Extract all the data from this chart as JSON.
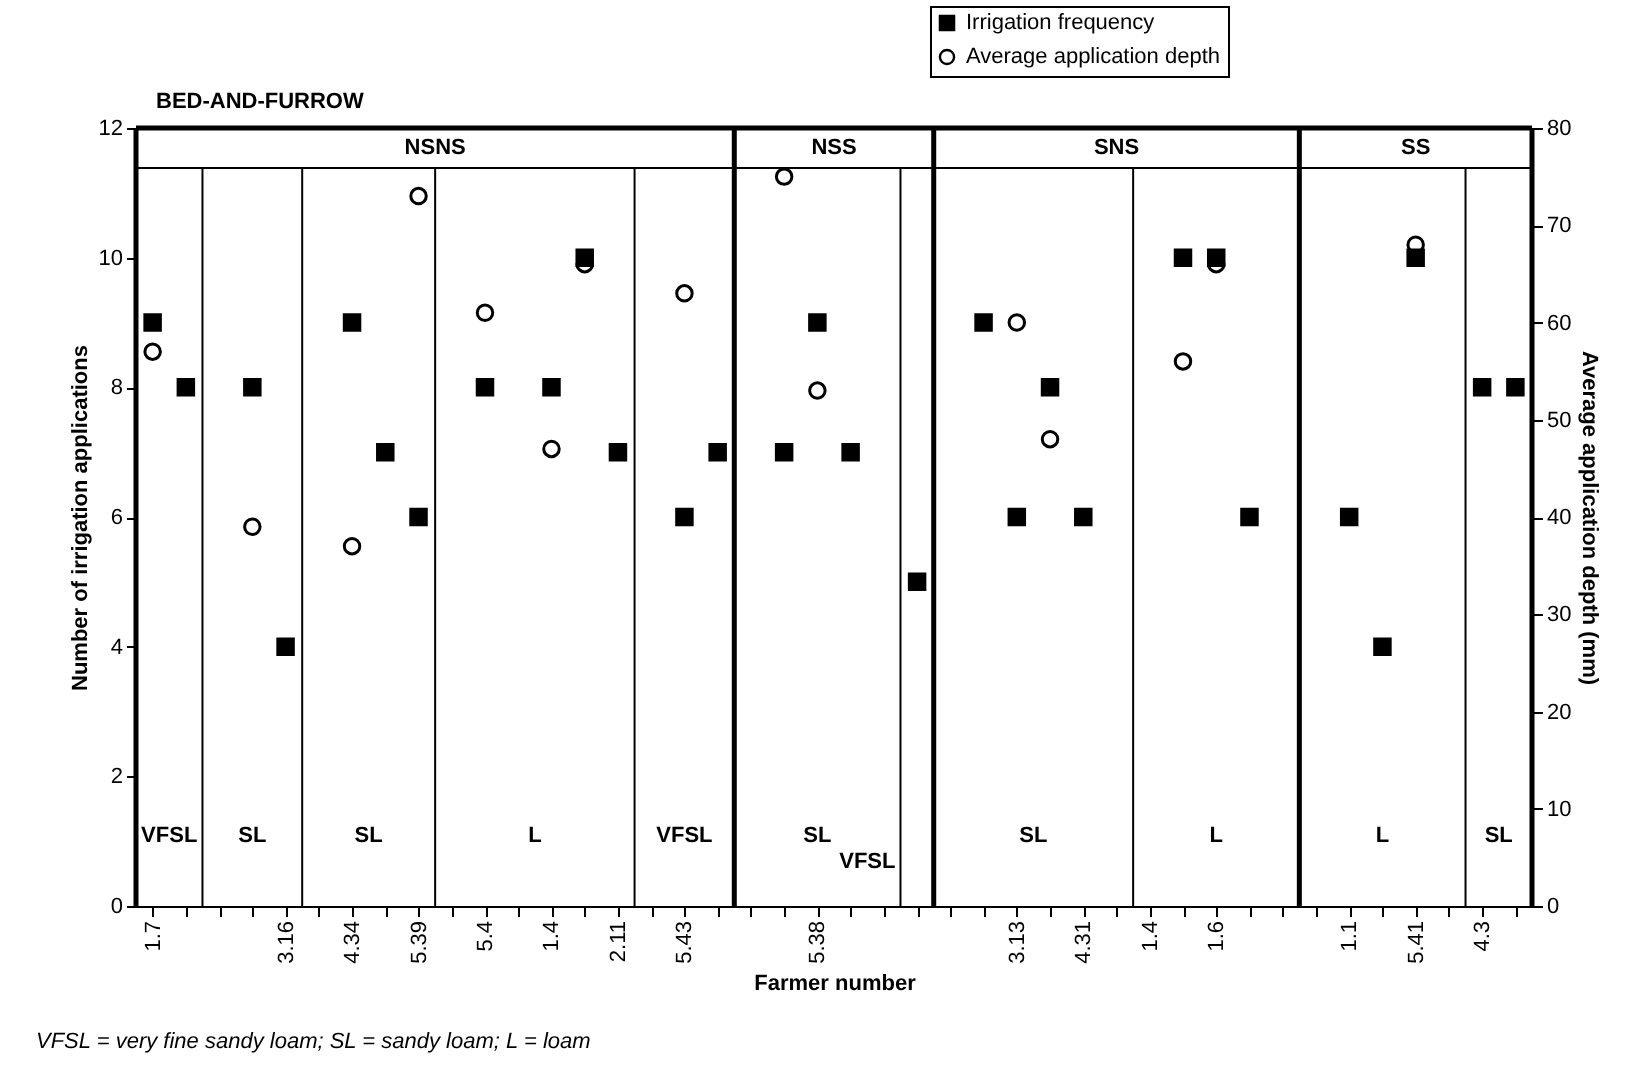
{
  "chart_data": {
    "type": "scatter",
    "title": "BED-AND-FURROW",
    "xlabel": "Farmer number",
    "ylabel": "Number of irrigation applications",
    "y2label": "Average application depth (mm)",
    "annotations": [
      "NSNS",
      "NSS",
      "SNS",
      "SS",
      "VFSL",
      "SL",
      "SL",
      "L",
      "VFSL",
      "SL",
      "VFSL",
      "SL",
      "L",
      "L",
      "SL",
      "VFSL = very fine sandy loam; SL = sandy loam; L = loam"
    ],
    "categories": [
      "1.7",
      null,
      null,
      null,
      "3.16",
      null,
      "4.34",
      null,
      "5.39",
      null,
      "5.4",
      null,
      "1.4",
      null,
      "2.11",
      null,
      "5.43",
      null,
      null,
      null,
      "5.38",
      null,
      null,
      null,
      null,
      null,
      "3.13",
      null,
      "4.31",
      null,
      "1.4",
      null,
      "1.6",
      null,
      null,
      null,
      "1.1",
      null,
      "5.41",
      null,
      "4.3",
      null
    ],
    "series": [
      {
        "name": "Irrigation frequency",
        "color": "#000000",
        "marker": "square",
        "values": [
          9,
          8,
          null,
          8,
          4,
          null,
          9,
          7,
          6,
          null,
          8,
          null,
          8,
          10,
          7,
          null,
          6,
          7,
          null,
          7,
          9,
          7,
          null,
          5,
          null,
          9,
          6,
          8,
          6,
          null,
          null,
          10,
          10,
          6,
          null,
          null,
          6,
          4,
          10,
          null,
          8,
          8
        ]
      },
      {
        "name": "Average application depth",
        "color": "#000000",
        "marker": "circle",
        "axis": "y2",
        "values": [
          57,
          null,
          null,
          39,
          null,
          null,
          37,
          null,
          73,
          null,
          61,
          null,
          47,
          66,
          null,
          null,
          63,
          null,
          null,
          75,
          53,
          null,
          null,
          null,
          null,
          null,
          60,
          48,
          null,
          null,
          null,
          56,
          66,
          null,
          null,
          null,
          null,
          null,
          68,
          null,
          null,
          null
        ]
      }
    ],
    "ylim": [
      0,
      12
    ],
    "yticks": [
      0,
      2,
      4,
      6,
      8,
      10,
      12
    ],
    "y2lim": [
      0,
      80
    ],
    "y2ticks": [
      0,
      10,
      20,
      30,
      40,
      50,
      60,
      70,
      80
    ],
    "legend": "top right"
  }
}
